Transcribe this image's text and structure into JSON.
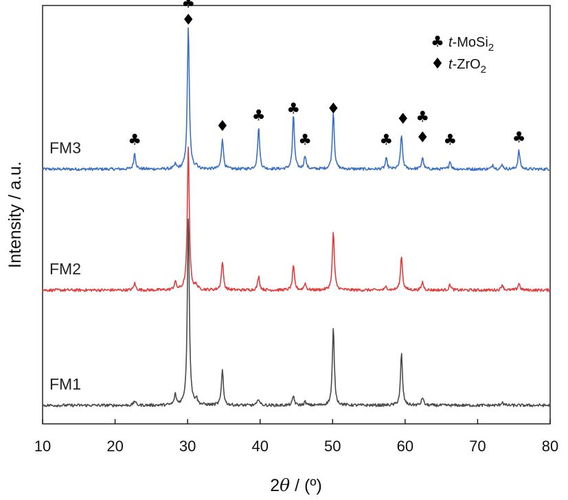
{
  "chart_data": {
    "type": "line",
    "xlabel_prefix": "2",
    "xlabel_symbol": "θ",
    "xlabel_suffix": " / (º)",
    "ylabel": "Intensity / a.u.",
    "xlim": [
      10,
      80
    ],
    "xticks": [
      "10",
      "20",
      "30",
      "40",
      "50",
      "60",
      "70",
      "80"
    ],
    "grid": false,
    "legend_position": "top-right",
    "legend": [
      {
        "glyph": "♣",
        "italic": "t",
        "text": "-MoSi",
        "sub": "2"
      },
      {
        "glyph": "♦",
        "italic": "t",
        "text": "-ZrO",
        "sub": "2"
      }
    ],
    "series": [
      {
        "name": "FM3",
        "color": "#3a6fc4",
        "baseline": 2.05,
        "peaks": [
          [
            22.7,
            0.14
          ],
          [
            28.3,
            0.04
          ],
          [
            30.1,
            1.25
          ],
          [
            31.2,
            0.03
          ],
          [
            34.8,
            0.27
          ],
          [
            39.8,
            0.36
          ],
          [
            44.6,
            0.47
          ],
          [
            46.2,
            0.12
          ],
          [
            50.1,
            0.5
          ],
          [
            57.4,
            0.09
          ],
          [
            59.5,
            0.3
          ],
          [
            62.4,
            0.1
          ],
          [
            66.2,
            0.07
          ],
          [
            72.1,
            0.04
          ],
          [
            73.4,
            0.04
          ],
          [
            75.7,
            0.16
          ]
        ]
      },
      {
        "name": "FM2",
        "color": "#e03c3c",
        "baseline": 1.0,
        "peaks": [
          [
            22.7,
            0.06
          ],
          [
            28.3,
            0.07
          ],
          [
            30.1,
            1.25
          ],
          [
            31.2,
            0.04
          ],
          [
            34.8,
            0.25
          ],
          [
            39.8,
            0.12
          ],
          [
            44.6,
            0.21
          ],
          [
            46.2,
            0.06
          ],
          [
            50.1,
            0.51
          ],
          [
            57.4,
            0.03
          ],
          [
            59.5,
            0.3
          ],
          [
            62.4,
            0.07
          ],
          [
            66.2,
            0.05
          ],
          [
            73.4,
            0.05
          ],
          [
            75.7,
            0.06
          ]
        ]
      },
      {
        "name": "FM1",
        "color": "#4a4a4a",
        "baseline": 0,
        "peaks": [
          [
            22.7,
            0.04
          ],
          [
            28.3,
            0.09
          ],
          [
            30.1,
            1.65
          ],
          [
            31.2,
            0.05
          ],
          [
            34.8,
            0.31
          ],
          [
            39.8,
            0.06
          ],
          [
            44.6,
            0.08
          ],
          [
            46.2,
            0.03
          ],
          [
            50.1,
            0.67
          ],
          [
            59.5,
            0.45
          ],
          [
            62.4,
            0.07
          ],
          [
            73.4,
            0.03
          ]
        ]
      }
    ],
    "annotations": [
      {
        "x": 22.7,
        "y": 2.31,
        "glyph": "♣"
      },
      {
        "x": 30.1,
        "y": 3.5,
        "glyph": "♣"
      },
      {
        "x": 30.1,
        "y": 3.35,
        "glyph": "♦"
      },
      {
        "x": 34.8,
        "y": 2.43,
        "glyph": "♦"
      },
      {
        "x": 39.8,
        "y": 2.52,
        "glyph": "♣"
      },
      {
        "x": 44.6,
        "y": 2.58,
        "glyph": "♣"
      },
      {
        "x": 46.2,
        "y": 2.31,
        "glyph": "♣"
      },
      {
        "x": 50.1,
        "y": 2.58,
        "glyph": "♦"
      },
      {
        "x": 57.4,
        "y": 2.31,
        "glyph": "♣"
      },
      {
        "x": 59.7,
        "y": 2.49,
        "glyph": "♦"
      },
      {
        "x": 62.4,
        "y": 2.51,
        "glyph": "♣"
      },
      {
        "x": 62.4,
        "y": 2.33,
        "glyph": "♦"
      },
      {
        "x": 66.2,
        "y": 2.31,
        "glyph": "♣"
      },
      {
        "x": 75.7,
        "y": 2.33,
        "glyph": "♣"
      }
    ]
  }
}
